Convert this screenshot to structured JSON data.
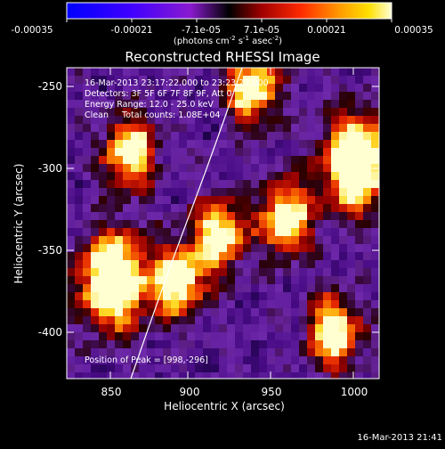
{
  "colorbar": {
    "ticks": [
      "-0.00035",
      "-0.00021",
      "-7.1e-05",
      "7.1e-05",
      "0.00021",
      "0.00035"
    ],
    "unit_main": "(photons cm",
    "unit_exp1": "-2",
    "unit_mid": " s",
    "unit_exp2": "-1",
    "unit_tail": " asec",
    "unit_exp3": "-2",
    "unit_close": ")"
  },
  "image": {
    "title": "Reconstructed RHESSI Image",
    "info_lines": [
      "16-Mar-2013 23:17:22.000 to 23:23:22.000",
      "Detectors: 3F 5F 6F 7F 8F 9F, Att 0",
      "Energy Range: 12.0 - 25.0 keV",
      "Clean     Total counts: 1.08E+04"
    ],
    "peak_label": "Position of Peak = [998,-296]"
  },
  "axes": {
    "xlabel": "Heliocentric X (arcsec)",
    "ylabel": "Heliocentric Y (arcsec)",
    "xticks": [
      "850",
      "900",
      "950",
      "1000"
    ],
    "yticks": [
      "-250",
      "-300",
      "-350",
      "-400"
    ]
  },
  "footer": {
    "timestamp": "16-Mar-2013 21:41"
  },
  "chart_data": {
    "type": "heatmap",
    "title": "Reconstructed RHESSI Image",
    "xlabel": "Heliocentric X (arcsec)",
    "ylabel": "Heliocentric Y (arcsec)",
    "xlim": [
      822,
      1012
    ],
    "ylim": [
      -428,
      -238
    ],
    "colorbar_range": [
      -0.00035,
      0.00035
    ],
    "colorbar_ticks": [
      -0.00035,
      -0.00021,
      -7.1e-05,
      7.1e-05,
      0.00021,
      0.00035
    ],
    "peak": [
      998,
      -296
    ],
    "bright_sources": [
      {
        "x": 998,
        "y": -296
      },
      {
        "x": 850,
        "y": -368
      },
      {
        "x": 890,
        "y": -368
      },
      {
        "x": 860,
        "y": -290
      },
      {
        "x": 935,
        "y": -250
      },
      {
        "x": 955,
        "y": -330
      },
      {
        "x": 915,
        "y": -340
      },
      {
        "x": 985,
        "y": -400
      }
    ]
  }
}
